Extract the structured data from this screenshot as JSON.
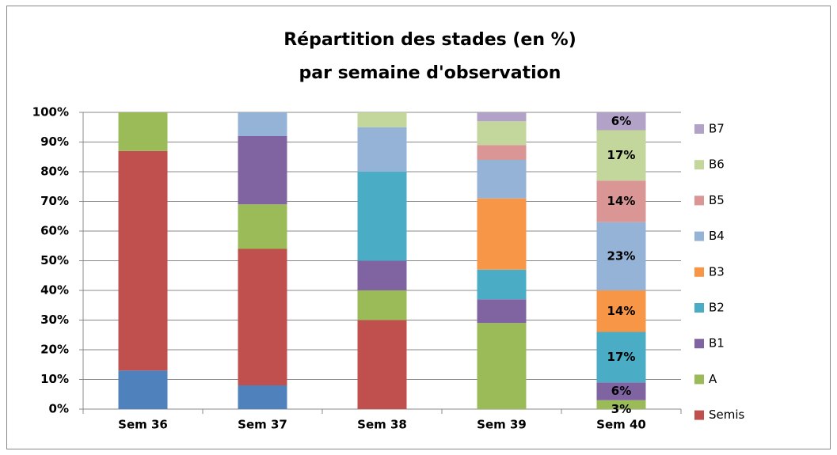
{
  "chart_data": {
    "type": "stacked_bar",
    "title": [
      "Répartition des stades (en %)",
      "par semaine d'observation"
    ],
    "categories": [
      "Sem 36",
      "Sem 37",
      "Sem 38",
      "Sem 39",
      "Sem 40"
    ],
    "series": [
      {
        "color": "#4f81bd",
        "values": [
          13,
          8,
          null,
          null,
          null
        ]
      },
      {
        "name": "Semis",
        "color": "#c0504d",
        "values": [
          74,
          46,
          30,
          null,
          null
        ]
      },
      {
        "name": "A",
        "color": "#9bbb59",
        "values": [
          13,
          15,
          10,
          29,
          3
        ],
        "value_labels": [
          null,
          null,
          null,
          null,
          "3%"
        ]
      },
      {
        "name": "B1",
        "color": "#8064a2",
        "values": [
          null,
          23,
          10,
          8,
          6
        ],
        "value_labels": [
          null,
          null,
          null,
          null,
          "6%"
        ]
      },
      {
        "name": "B2",
        "color": "#4bacc6",
        "values": [
          null,
          null,
          30,
          10,
          17
        ],
        "value_labels": [
          null,
          null,
          null,
          null,
          "17%"
        ]
      },
      {
        "name": "B3",
        "color": "#f79646",
        "values": [
          null,
          null,
          null,
          24,
          14
        ],
        "value_labels": [
          null,
          null,
          null,
          null,
          "14%"
        ]
      },
      {
        "name": "B4",
        "color": "#95b3d7",
        "values": [
          null,
          8,
          15,
          13,
          23
        ],
        "value_labels": [
          null,
          null,
          null,
          null,
          "23%"
        ]
      },
      {
        "name": "B5",
        "color": "#d99694",
        "values": [
          null,
          null,
          null,
          5,
          14
        ],
        "value_labels": [
          null,
          null,
          null,
          null,
          "14%"
        ]
      },
      {
        "name": "B6",
        "color": "#c3d69b",
        "values": [
          null,
          null,
          5,
          8,
          17
        ],
        "value_labels": [
          null,
          null,
          null,
          null,
          "17%"
        ]
      },
      {
        "name": "B7",
        "color": "#b3a2c7",
        "values": [
          null,
          null,
          null,
          3,
          6
        ],
        "value_labels": [
          null,
          null,
          null,
          null,
          "6%"
        ]
      }
    ],
    "ylim": [
      0,
      100
    ],
    "yticks": [
      {
        "value": 0,
        "label": "0%"
      },
      {
        "value": 10,
        "label": "10%"
      },
      {
        "value": 20,
        "label": "20%"
      },
      {
        "value": 30,
        "label": "30%"
      },
      {
        "value": 40,
        "label": "40%"
      },
      {
        "value": 50,
        "label": "50%"
      },
      {
        "value": 60,
        "label": "60%"
      },
      {
        "value": 70,
        "label": "70%"
      },
      {
        "value": 80,
        "label": "80%"
      },
      {
        "value": 90,
        "label": "90%"
      },
      {
        "value": 100,
        "label": "100%"
      }
    ],
    "grid": true,
    "legend": "right"
  }
}
